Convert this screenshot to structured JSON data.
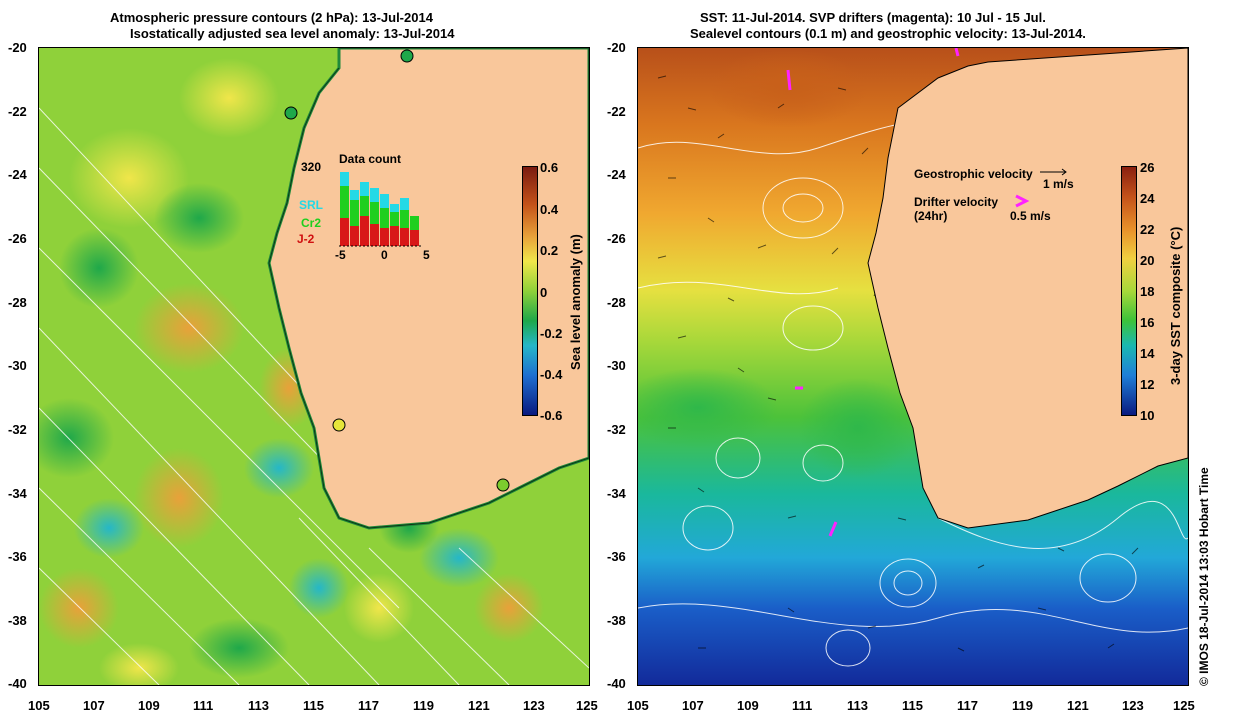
{
  "left": {
    "title_line1": "Atmospheric pressure contours (2 hPa): 13-Jul-2014",
    "title_line2": "Isostatically adjusted sea level anomaly: 13-Jul-2014",
    "colorbar_label": "Sea level anomaly (m)",
    "colorbar_ticks": [
      "0.6",
      "0.4",
      "0.2",
      "0",
      "-0.2",
      "-0.4",
      "-0.6"
    ],
    "inset": {
      "title": "Data count",
      "max": "320",
      "legend": [
        "SRL",
        "Cr2",
        "J-2"
      ],
      "xticks": [
        "-5",
        "0",
        "5"
      ]
    }
  },
  "right": {
    "title_line1": "SST: 11-Jul-2014. SVP drifters (magenta): 10 Jul - 15 Jul.",
    "title_line2": "Sealevel contours (0.1 m) and geostrophic velocity: 13-Jul-2014.",
    "colorbar_label": "3-day SST composite (°C)",
    "colorbar_ticks": [
      "26",
      "24",
      "22",
      "20",
      "18",
      "16",
      "14",
      "12",
      "10"
    ],
    "geo_label": "Geostrophic velocity",
    "geo_scale": "1 m/s",
    "drifter_label": "Drifter velocity",
    "drifter_sub": "(24hr)",
    "drifter_scale": "0.5 m/s"
  },
  "y_ticks": [
    "-20",
    "-22",
    "-24",
    "-26",
    "-28",
    "-30",
    "-32",
    "-34",
    "-36",
    "-38",
    "-40"
  ],
  "x_ticks": [
    "105",
    "107",
    "109",
    "111",
    "113",
    "115",
    "117",
    "119",
    "121",
    "123",
    "125"
  ],
  "credit": "© IMOS 18-Jul-2014 13:03 Hobart Time",
  "colors": {
    "land": "#f9c79b",
    "sea_green": "#7ccc2e",
    "sst_warm": "#d9761e",
    "sst_cold": "#1740b0"
  }
}
